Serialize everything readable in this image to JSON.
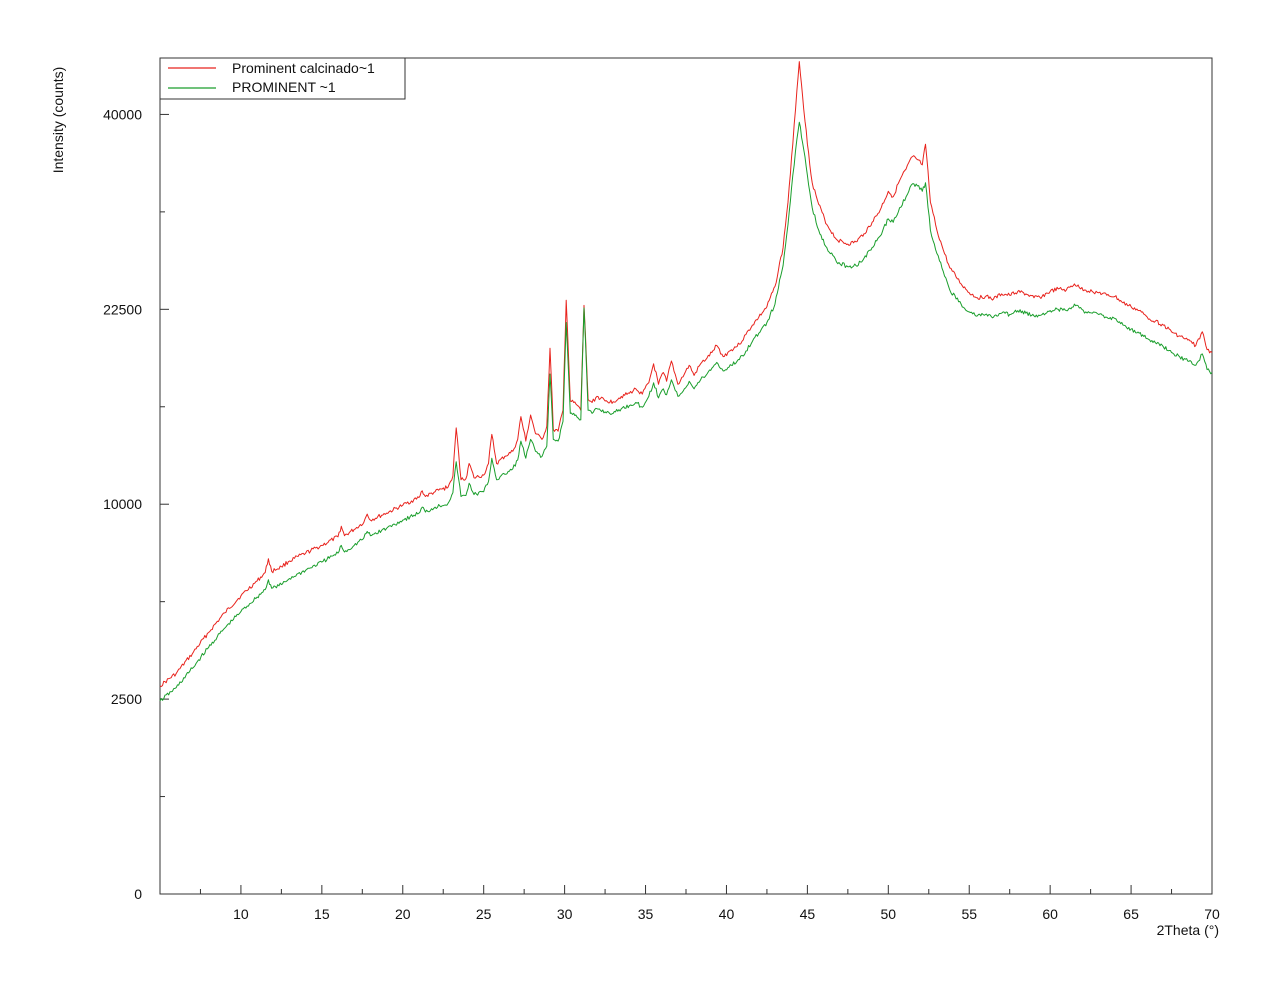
{
  "chart_data": {
    "type": "line",
    "title": "",
    "xlabel": "2Theta (°)",
    "ylabel": "Intensity (counts)",
    "xlim": [
      5,
      70
    ],
    "ylim": [
      0,
      46000
    ],
    "y_scale": "sqrt",
    "grid": false,
    "legend_position": "top-left",
    "x_ticks": [
      10,
      15,
      20,
      25,
      30,
      35,
      40,
      45,
      50,
      55,
      60,
      65,
      70
    ],
    "x_tick_labels": [
      "10",
      "15",
      "20",
      "25",
      "30",
      "35",
      "40",
      "45",
      "50",
      "55",
      "60",
      "65",
      "70"
    ],
    "y_ticks": [
      0,
      2500,
      10000,
      22500,
      40000
    ],
    "y_tick_labels": [
      "0",
      "2500",
      "10000",
      "22500",
      "40000"
    ],
    "series": [
      {
        "name": "Prominent calcinado~1",
        "color": "#e8231d",
        "x": [
          5.0,
          6,
          7,
          8,
          9,
          10,
          11,
          11.5,
          11.7,
          11.9,
          12.5,
          13,
          14,
          15,
          16,
          16.2,
          16.4,
          17,
          17.6,
          17.8,
          18,
          19,
          20,
          21,
          21.2,
          21.4,
          22,
          22.8,
          23.1,
          23.3,
          23.6,
          23.9,
          24.1,
          24.4,
          25,
          25.3,
          25.5,
          25.8,
          26.3,
          26.8,
          27.1,
          27.3,
          27.6,
          27.9,
          28.2,
          28.6,
          28.9,
          29.1,
          29.3,
          29.6,
          29.9,
          30.1,
          30.35,
          30.7,
          31.0,
          31.2,
          31.45,
          31.7,
          32.0,
          32.5,
          33,
          33.5,
          34,
          34.4,
          34.8,
          35.2,
          35.5,
          35.8,
          36.1,
          36.3,
          36.6,
          37.0,
          37.4,
          37.7,
          38.0,
          38.4,
          38.8,
          39.1,
          39.4,
          39.8,
          40.3,
          40.8,
          41.2,
          41.6,
          42,
          42.5,
          43,
          43.5,
          43.8,
          44.1,
          44.35,
          44.5,
          44.7,
          45.0,
          45.3,
          45.7,
          46.2,
          46.8,
          47.5,
          48,
          48.5,
          49,
          49.5,
          50.0,
          50.3,
          50.7,
          51.1,
          51.5,
          51.8,
          52.1,
          52.3,
          52.6,
          53,
          53.4,
          53.8,
          54.5,
          55,
          55.5,
          56,
          56.5,
          57,
          57.5,
          58,
          58.5,
          59,
          59.5,
          60,
          60.5,
          61,
          61.5,
          61.8,
          62.2,
          62.6,
          63,
          63.5,
          64,
          64.5,
          65,
          65.5,
          66,
          66.5,
          67,
          67.5,
          68,
          68.5,
          69,
          69.4,
          69.7,
          70
        ],
        "y": [
          2850,
          3200,
          3800,
          4500,
          5200,
          5850,
          6450,
          6800,
          7400,
          6850,
          7050,
          7300,
          7650,
          8000,
          8400,
          8900,
          8450,
          8750,
          9100,
          9500,
          9200,
          9550,
          9950,
          10350,
          10700,
          10400,
          10650,
          10900,
          11500,
          14300,
          11300,
          11350,
          12200,
          11400,
          11550,
          12200,
          13900,
          12200,
          12600,
          12900,
          13600,
          15000,
          13500,
          15100,
          13950,
          13600,
          14400,
          19600,
          14200,
          14100,
          15400,
          23200,
          16000,
          15800,
          15400,
          22800,
          16100,
          15900,
          16300,
          16000,
          15950,
          16300,
          16500,
          16800,
          16450,
          17200,
          18500,
          17100,
          17900,
          17300,
          18700,
          17100,
          17800,
          18400,
          17700,
          18500,
          18900,
          19300,
          19800,
          19000,
          19500,
          19900,
          20600,
          21300,
          21900,
          22700,
          24300,
          27500,
          31500,
          37000,
          42500,
          45600,
          42000,
          37000,
          33300,
          31300,
          29500,
          28200,
          27800,
          28000,
          28700,
          29700,
          30800,
          32500,
          32000,
          33500,
          34600,
          35800,
          35500,
          35000,
          37000,
          31500,
          29000,
          27300,
          25800,
          24500,
          23800,
          23400,
          23500,
          23300,
          23700,
          23600,
          23900,
          23700,
          23400,
          23500,
          23900,
          24100,
          24000,
          24500,
          24200,
          24000,
          23900,
          23800,
          23600,
          23500,
          23000,
          22700,
          22400,
          21900,
          21600,
          21300,
          20800,
          20500,
          20200,
          19800,
          20800,
          19500,
          19300
        ]
      },
      {
        "name": "PROMINENT ~1",
        "color": "#1a9e2c",
        "x": [
          5.0,
          6,
          7,
          8,
          9,
          10,
          11,
          11.5,
          11.7,
          11.9,
          12.5,
          13,
          14,
          15,
          16,
          16.2,
          16.4,
          17,
          17.6,
          17.8,
          18,
          19,
          20,
          21,
          21.2,
          21.4,
          22,
          22.8,
          23.1,
          23.3,
          23.6,
          23.9,
          24.1,
          24.4,
          25,
          25.3,
          25.5,
          25.8,
          26.3,
          26.8,
          27.1,
          27.3,
          27.6,
          27.9,
          28.2,
          28.6,
          28.9,
          29.1,
          29.3,
          29.6,
          29.9,
          30.1,
          30.35,
          30.7,
          31.0,
          31.2,
          31.45,
          31.7,
          32.0,
          32.5,
          33,
          33.5,
          34,
          34.4,
          34.8,
          35.2,
          35.5,
          35.8,
          36.1,
          36.3,
          36.6,
          37.0,
          37.4,
          37.7,
          38.0,
          38.4,
          38.8,
          39.1,
          39.4,
          39.8,
          40.3,
          40.8,
          41.2,
          41.6,
          42,
          42.5,
          43,
          43.5,
          43.8,
          44.1,
          44.35,
          44.5,
          44.7,
          45.0,
          45.3,
          45.7,
          46.2,
          46.8,
          47.5,
          48,
          48.5,
          49,
          49.5,
          50.0,
          50.3,
          50.7,
          51.1,
          51.5,
          51.8,
          52.1,
          52.3,
          52.6,
          53,
          53.4,
          53.8,
          54.5,
          55,
          55.5,
          56,
          56.5,
          57,
          57.5,
          58,
          58.5,
          59,
          59.5,
          60,
          60.5,
          61,
          61.5,
          61.8,
          62.2,
          62.6,
          63,
          63.5,
          64,
          64.5,
          65,
          65.5,
          66,
          66.5,
          67,
          67.5,
          68,
          68.5,
          69,
          69.4,
          69.7,
          70
        ],
        "y": [
          2450,
          2800,
          3350,
          4000,
          4650,
          5250,
          5800,
          6100,
          6500,
          6150,
          6300,
          6550,
          6900,
          7250,
          7650,
          8000,
          7700,
          8000,
          8350,
          8650,
          8450,
          8800,
          9200,
          9550,
          9850,
          9600,
          9850,
          10050,
          10600,
          12300,
          10400,
          10450,
          11100,
          10500,
          10650,
          11200,
          12500,
          11300,
          11600,
          11900,
          12400,
          13500,
          12500,
          13600,
          12900,
          12600,
          13200,
          17800,
          13600,
          13500,
          14700,
          21500,
          15200,
          15100,
          14800,
          22600,
          15400,
          15200,
          15500,
          15300,
          15200,
          15500,
          15700,
          15900,
          15600,
          16300,
          17200,
          16200,
          16800,
          16400,
          17400,
          16300,
          16800,
          17300,
          16800,
          17400,
          17800,
          18200,
          18600,
          18000,
          18400,
          18800,
          19400,
          20100,
          20700,
          21500,
          22900,
          26000,
          29500,
          34000,
          37500,
          39200,
          37200,
          34000,
          31000,
          29000,
          27500,
          26300,
          25900,
          26000,
          26600,
          27500,
          28500,
          30000,
          29700,
          31000,
          32000,
          33200,
          33000,
          32500,
          33300,
          29000,
          27000,
          25500,
          24000,
          22900,
          22300,
          22000,
          22100,
          21900,
          22200,
          22100,
          22400,
          22200,
          22000,
          22100,
          22400,
          22500,
          22400,
          22900,
          22600,
          22300,
          22200,
          22100,
          21900,
          21800,
          21300,
          21000,
          20700,
          20300,
          20000,
          19700,
          19300,
          19000,
          18700,
          18400,
          19200,
          18100,
          17900
        ]
      }
    ]
  }
}
